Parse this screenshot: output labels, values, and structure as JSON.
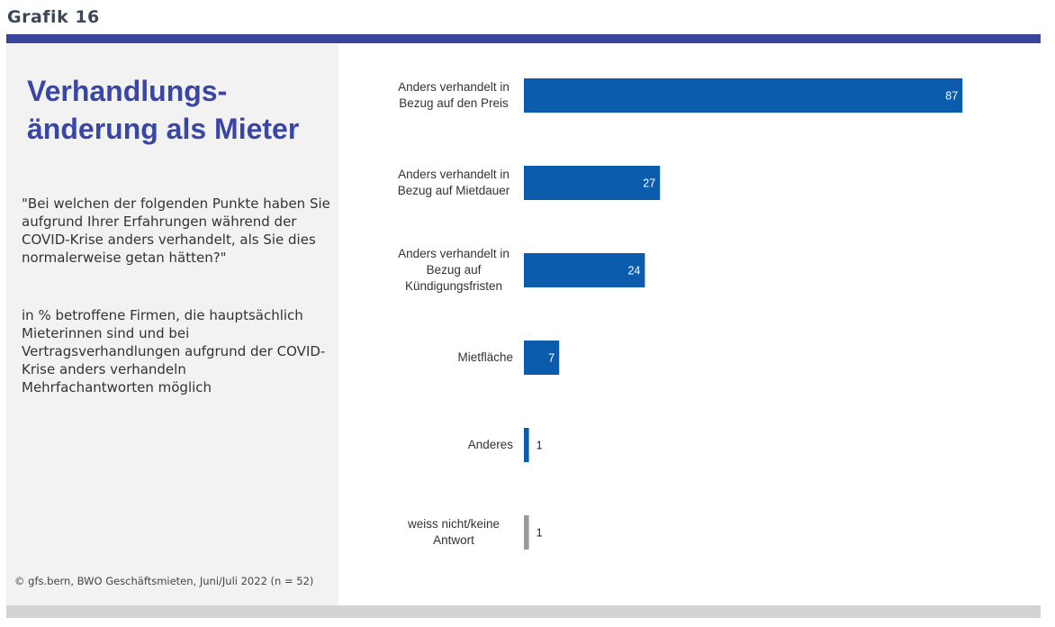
{
  "header": {
    "title": "Grafik 16"
  },
  "panel": {
    "title": "Verhandlungs-\nänderung als Mieter",
    "question": "\"Bei welchen der folgenden Punkte haben Sie aufgrund Ihrer Erfahrungen während der COVID-Krise anders verhandelt, als Sie dies normalerweise getan hätten?\"",
    "note": "in % betroffene Firmen, die hauptsächlich Mieterinnen sind und bei Vertragsverhandlungen aufgrund der COVID-Krise anders verhandeln",
    "note2": "Mehrfachantworten möglich",
    "source": "© gfs.bern, BWO Geschäftsmieten, Juni/Juli 2022 (n = 52)"
  },
  "chart_data": {
    "type": "hbar",
    "categories": [
      "Anders verhandelt in Bezug auf den Preis",
      "Anders verhandelt in Bezug auf Mietdauer",
      "Anders verhandelt in Bezug auf Kündigungsfristen",
      "Mietfläche",
      "Anderes",
      "weiss nicht/keine Antwort"
    ],
    "values": [
      87,
      27,
      24,
      7,
      1,
      1
    ],
    "colors": [
      "#0b5cad",
      "#0b5cad",
      "#0b5cad",
      "#0b5cad",
      "#0b5cad",
      "#9a9a9a"
    ],
    "xlim": [
      0,
      100
    ]
  }
}
